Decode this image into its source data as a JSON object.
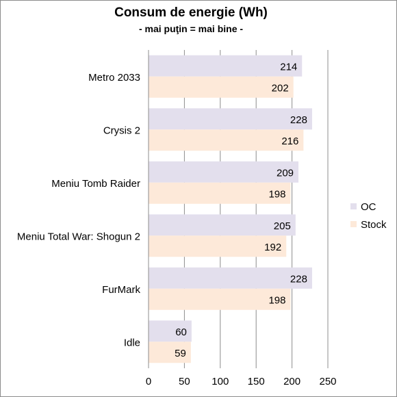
{
  "chart_data": {
    "type": "bar",
    "orientation": "horizontal",
    "title": "Consum de energie (Wh)",
    "subtitle": "- mai puţin = mai bine -",
    "categories": [
      "Metro 2033",
      "Crysis 2",
      "Meniu Tomb Raider",
      "Meniu Total War: Shogun 2",
      "FurMark",
      "Idle"
    ],
    "series": [
      {
        "name": "OC",
        "color": "#e3dfed",
        "values": [
          214,
          228,
          209,
          205,
          228,
          60
        ]
      },
      {
        "name": "Stock",
        "color": "#fde9d9",
        "values": [
          202,
          216,
          198,
          192,
          198,
          59
        ]
      }
    ],
    "xlim": [
      0,
      250
    ],
    "xticks": [
      0,
      50,
      100,
      150,
      200,
      250
    ],
    "grid": true,
    "gridline_color": "#8c8c8c",
    "legend_position": "right",
    "data_labels": true
  }
}
